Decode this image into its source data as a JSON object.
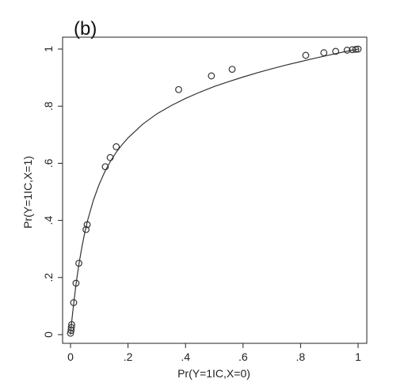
{
  "chart_data": {
    "type": "scatter",
    "panel_label": "(b)",
    "title": "",
    "xlabel": "Pr(Y=1IC,X=0)",
    "ylabel": "Pr(Y=1IC,X=1)",
    "xlim": [
      0,
      1
    ],
    "ylim": [
      0,
      1
    ],
    "x_ticks": [
      0,
      0.2,
      0.4,
      0.6,
      0.8,
      1
    ],
    "x_tick_labels": [
      "0",
      ".2",
      ".4",
      ".6",
      ".8",
      "1"
    ],
    "y_ticks": [
      0,
      0.2,
      0.4,
      0.6,
      0.8,
      1
    ],
    "y_tick_labels": [
      "0",
      ".2",
      ".4",
      ".6",
      ".8",
      "1"
    ],
    "grid": false,
    "marker": "hollow-circle",
    "colors": {
      "axes": "#222222",
      "marks": "#333333",
      "curve": "#333333"
    },
    "points": [
      {
        "x": 0.0,
        "y": 0.005
      },
      {
        "x": 0.002,
        "y": 0.015
      },
      {
        "x": 0.003,
        "y": 0.025
      },
      {
        "x": 0.004,
        "y": 0.035
      },
      {
        "x": 0.011,
        "y": 0.112
      },
      {
        "x": 0.019,
        "y": 0.18
      },
      {
        "x": 0.029,
        "y": 0.25
      },
      {
        "x": 0.054,
        "y": 0.368
      },
      {
        "x": 0.058,
        "y": 0.385
      },
      {
        "x": 0.121,
        "y": 0.588
      },
      {
        "x": 0.138,
        "y": 0.62
      },
      {
        "x": 0.159,
        "y": 0.658
      },
      {
        "x": 0.376,
        "y": 0.858
      },
      {
        "x": 0.49,
        "y": 0.906
      },
      {
        "x": 0.562,
        "y": 0.929
      },
      {
        "x": 0.818,
        "y": 0.978
      },
      {
        "x": 0.881,
        "y": 0.987
      },
      {
        "x": 0.922,
        "y": 0.992
      },
      {
        "x": 0.962,
        "y": 0.996
      },
      {
        "x": 0.98,
        "y": 0.998
      },
      {
        "x": 0.992,
        "y": 0.999
      },
      {
        "x": 1.0,
        "y": 1.0
      }
    ],
    "curve": {
      "x": [
        0,
        0.002,
        0.005,
        0.01,
        0.02,
        0.03,
        0.04,
        0.05,
        0.06,
        0.08,
        0.1,
        0.12,
        0.14,
        0.16,
        0.18,
        0.2,
        0.25,
        0.3,
        0.35,
        0.4,
        0.45,
        0.5,
        0.55,
        0.6,
        0.65,
        0.7,
        0.75,
        0.8,
        0.85,
        0.9,
        0.95,
        1.0
      ],
      "y": [
        0,
        0.022,
        0.053,
        0.1,
        0.183,
        0.251,
        0.309,
        0.359,
        0.402,
        0.472,
        0.527,
        0.572,
        0.609,
        0.64,
        0.666,
        0.689,
        0.736,
        0.773,
        0.802,
        0.827,
        0.849,
        0.869,
        0.886,
        0.902,
        0.917,
        0.931,
        0.944,
        0.956,
        0.968,
        0.979,
        0.99,
        1.0
      ]
    }
  }
}
